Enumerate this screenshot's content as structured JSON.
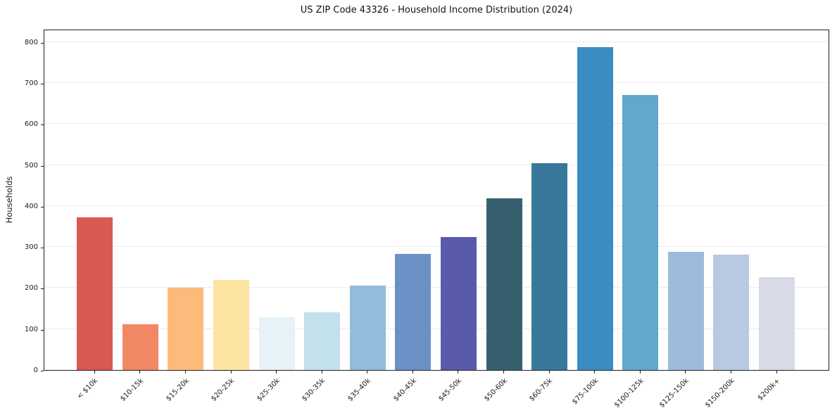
{
  "chart_data": {
    "type": "bar",
    "title": "US ZIP Code 43326 - Household Income Distribution (2024)",
    "xlabel": "",
    "ylabel": "Households",
    "categories": [
      "< $10k",
      "$10-15k",
      "$15-20k",
      "$20-25k",
      "$25-30k",
      "$30-35k",
      "$35-40k",
      "$40-45k",
      "$45-50k",
      "$50-60k",
      "$60-75k",
      "$75-100k",
      "$100-125k",
      "$125-150k",
      "$150-200k",
      "$200k+"
    ],
    "values": [
      373,
      112,
      200,
      220,
      128,
      140,
      206,
      283,
      324,
      418,
      505,
      788,
      670,
      289,
      281,
      227
    ],
    "bar_colors": [
      "#d85a53",
      "#f28763",
      "#fcbb7a",
      "#fde4a1",
      "#e6f2f8",
      "#c3e1ec",
      "#92bcdb",
      "#6a90c5",
      "#5a5aab",
      "#37606f",
      "#38799b",
      "#3a8cc3",
      "#62a7cc",
      "#9dbcdc",
      "#b8c9e1",
      "#d9dae8"
    ],
    "ylim": [
      0,
      832
    ],
    "yticks": [
      0,
      100,
      200,
      300,
      400,
      500,
      600,
      700,
      800
    ],
    "x_tick_rotation_deg": 45,
    "grid": "horizontal-only",
    "legend": "none"
  },
  "style": {
    "background": "#ffffff",
    "grid_color": "#ebebeb",
    "axis_color": "#1f1f1f",
    "text_color": "#1c1c1c"
  }
}
